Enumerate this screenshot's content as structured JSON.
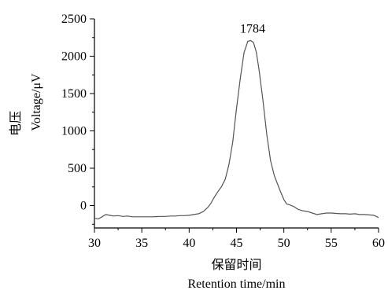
{
  "chart_data": {
    "type": "line",
    "title": "",
    "xlabel_cn": "保留时间",
    "xlabel_en": "Retention  time/min",
    "ylabel_cn": "电压",
    "ylabel_en": "Voltage/μV",
    "xlim": [
      30,
      60
    ],
    "ylim": [
      -300,
      2500
    ],
    "x_ticks": [
      30,
      35,
      40,
      45,
      50,
      55,
      60
    ],
    "x_tick_labels": [
      "30",
      "35",
      "40",
      "45",
      "50",
      "55",
      "60"
    ],
    "y_ticks": [
      0,
      500,
      1000,
      1500,
      2000,
      2500
    ],
    "y_tick_labels": [
      "0",
      "500",
      "1000",
      "1500",
      "2000",
      "2500"
    ],
    "grid": false,
    "legend": "none",
    "line_color": "#555555",
    "annotations": [
      {
        "text": "1784",
        "x": 46.7,
        "y": 2210
      }
    ],
    "series": [
      {
        "x": [
          30.0,
          30.4,
          30.8,
          31.2,
          31.6,
          32.0,
          32.5,
          33.0,
          33.5,
          34.0,
          34.5,
          35.0,
          35.5,
          36.0,
          36.5,
          37.0,
          37.5,
          38.0,
          38.5,
          39.0,
          39.5,
          40.0,
          40.5,
          41.0,
          41.5,
          42.0,
          42.3,
          42.6,
          43.0,
          43.4,
          43.8,
          44.2,
          44.6,
          45.0,
          45.4,
          45.8,
          46.2,
          46.5,
          46.8,
          47.1,
          47.4,
          47.8,
          48.2,
          48.6,
          49.0,
          49.3,
          49.6,
          50.0,
          50.3,
          50.6,
          51.0,
          51.5,
          52.0,
          52.5,
          53.0,
          53.5,
          54.0,
          54.5,
          55.0,
          55.5,
          56.0,
          56.5,
          57.0,
          57.5,
          58.0,
          58.5,
          59.0,
          59.5,
          60.0
        ],
        "y": [
          -170,
          -180,
          -150,
          -120,
          -130,
          -140,
          -135,
          -145,
          -140,
          -150,
          -150,
          -150,
          -150,
          -150,
          -148,
          -145,
          -145,
          -140,
          -140,
          -135,
          -135,
          -130,
          -120,
          -110,
          -80,
          -20,
          30,
          100,
          180,
          250,
          350,
          550,
          850,
          1300,
          1700,
          2050,
          2200,
          2210,
          2180,
          2050,
          1800,
          1400,
          950,
          600,
          400,
          300,
          200,
          80,
          20,
          10,
          -10,
          -50,
          -70,
          -80,
          -100,
          -120,
          -110,
          -100,
          -100,
          -105,
          -110,
          -110,
          -115,
          -110,
          -120,
          -120,
          -125,
          -130,
          -160
        ]
      }
    ]
  }
}
